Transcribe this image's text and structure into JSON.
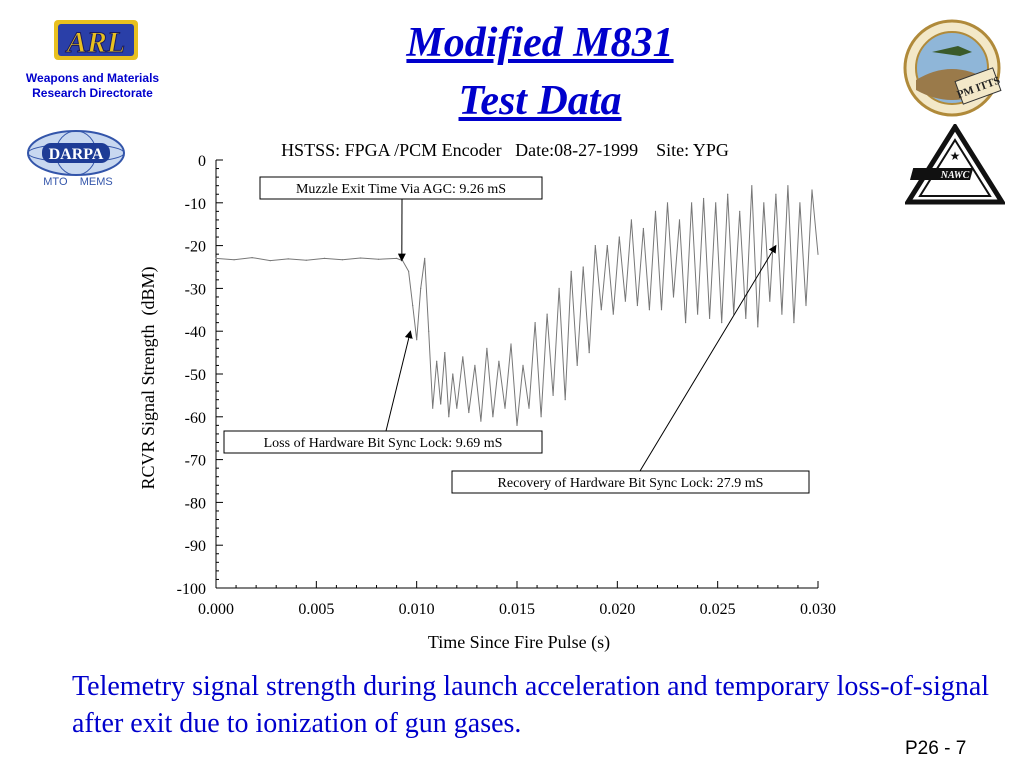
{
  "slide": {
    "title_line1": "Modified M831",
    "title_line2": "Test Data",
    "arl_logo_text": "ARL",
    "arl_subtitle_line1": "Weapons and Materials",
    "arl_subtitle_line2": "Research Directorate",
    "darpa_logo_text": "DARPA",
    "darpa_subtitle": "MTO    MEMS",
    "pm_badge_text": "PM ITTS",
    "nawc_logo_text": "NAWC",
    "caption": "Telemetry signal strength during launch acceleration and temporary loss-of-signal after exit due to ionization of gun gases.",
    "page_number": "P26 - 7",
    "colors": {
      "title": "#0000cc",
      "caption": "#0000cc",
      "trace": "#777777"
    }
  },
  "chart_data": {
    "type": "line",
    "title": "HSTSS: FPGA /PCM Encoder   Date:08-27-1999    Site: YPG",
    "xlabel": "Time Since Fire Pulse (s)",
    "ylabel": "RCVR Signal Strength  (dBM)",
    "xlim": [
      0.0,
      0.03
    ],
    "ylim": [
      -100,
      0
    ],
    "x_ticks": [
      "0.000",
      "0.005",
      "0.010",
      "0.015",
      "0.020",
      "0.025",
      "0.030"
    ],
    "y_ticks": [
      "0",
      "-10",
      "-20",
      "-30",
      "-40",
      "-50",
      "-60",
      "-70",
      "-80",
      "-90",
      "-100"
    ],
    "grid": false,
    "series": [
      {
        "x": [
          0.0,
          0.0009,
          0.0018,
          0.0027,
          0.0036,
          0.0045,
          0.0054,
          0.0063,
          0.0072,
          0.0081,
          0.009,
          0.0093,
          0.0096,
          0.0098,
          0.01,
          0.0102,
          0.0104,
          0.0106,
          0.0108,
          0.011,
          0.0112,
          0.0114,
          0.0116,
          0.0118,
          0.012,
          0.0123,
          0.0126,
          0.0129,
          0.0132,
          0.0135,
          0.0138,
          0.0141,
          0.0144,
          0.0147,
          0.015,
          0.0153,
          0.0156,
          0.0159,
          0.0162,
          0.0165,
          0.0168,
          0.0171,
          0.0174,
          0.0177,
          0.018,
          0.0183,
          0.0186,
          0.0189,
          0.0192,
          0.0195,
          0.0198,
          0.0201,
          0.0204,
          0.0207,
          0.021,
          0.0213,
          0.0216,
          0.0219,
          0.0222,
          0.0225,
          0.0228,
          0.0231,
          0.0234,
          0.0237,
          0.024,
          0.0243,
          0.0246,
          0.0249,
          0.0252,
          0.0255,
          0.0258,
          0.0261,
          0.0264,
          0.0267,
          0.027,
          0.0273,
          0.0276,
          0.0279,
          0.0282,
          0.0285,
          0.0288,
          0.0291,
          0.0294,
          0.0297,
          0.03
        ],
        "values": [
          -23.0,
          -23.3,
          -22.8,
          -23.5,
          -23.1,
          -23.4,
          -23.0,
          -23.3,
          -22.9,
          -23.2,
          -23.0,
          -23.5,
          -26.0,
          -34.0,
          -42.0,
          -30.0,
          -23.0,
          -40.0,
          -58.0,
          -47.0,
          -57.0,
          -45.0,
          -60.0,
          -50.0,
          -58.0,
          -46.0,
          -59.0,
          -48.0,
          -61.0,
          -44.0,
          -60.0,
          -47.0,
          -58.0,
          -43.0,
          -62.0,
          -48.0,
          -58.0,
          -38.0,
          -60.0,
          -36.0,
          -55.0,
          -30.0,
          -56.0,
          -26.0,
          -48.0,
          -25.0,
          -45.0,
          -20.0,
          -35.0,
          -20.0,
          -36.0,
          -18.0,
          -33.0,
          -14.0,
          -34.0,
          -16.0,
          -35.0,
          -12.0,
          -35.0,
          -10.0,
          -32.0,
          -14.0,
          -38.0,
          -10.0,
          -36.0,
          -9.0,
          -37.0,
          -10.0,
          -38.0,
          -8.0,
          -36.0,
          -12.0,
          -37.0,
          -6.0,
          -39.0,
          -10.0,
          -33.0,
          -8.0,
          -36.0,
          -6.0,
          -38.0,
          -10.0,
          -34.0,
          -7.0,
          -22.0
        ]
      }
    ],
    "annotations": [
      {
        "text": "Muzzle Exit Time Via AGC: 9.26 mS",
        "target_x": 0.00926,
        "target_y": -23.5
      },
      {
        "text": "Loss of Hardware Bit Sync Lock: 9.69 mS",
        "target_x": 0.00969,
        "target_y": -40.0
      },
      {
        "text": "Recovery of Hardware Bit Sync Lock: 27.9 mS",
        "target_x": 0.0279,
        "target_y": -20.0
      }
    ]
  }
}
